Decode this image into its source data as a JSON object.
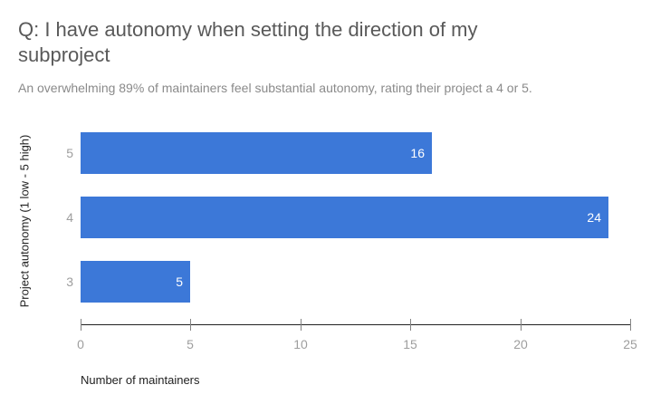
{
  "colors": {
    "background": "#ffffff",
    "bar": "#3c78d8",
    "value_label": "#ffffff",
    "title": "#595959",
    "subtitle": "#8a8a8a",
    "tick_label": "#9e9e9e",
    "tick_mark": "#848484",
    "axis_line": "#212121",
    "axis_title": "#212121"
  },
  "chart_data": {
    "type": "bar",
    "orientation": "horizontal",
    "title": "Q: I have autonomy when setting the direction of my subproject",
    "subtitle": "An overwhelming 89% of maintainers feel substantial autonomy, rating their project a 4 or 5.",
    "categories": [
      "5",
      "4",
      "3"
    ],
    "values": [
      16,
      24,
      5
    ],
    "value_labels": [
      "16",
      "24",
      "5"
    ],
    "xlabel": "Number of maintainers",
    "ylabel": "Project autonomy (1 low - 5 high)",
    "xlim": [
      0,
      25
    ],
    "xticks": [
      0,
      5,
      10,
      15,
      20,
      25
    ],
    "grid": false,
    "legend_position": "none",
    "series_color": "#3c78d8"
  }
}
